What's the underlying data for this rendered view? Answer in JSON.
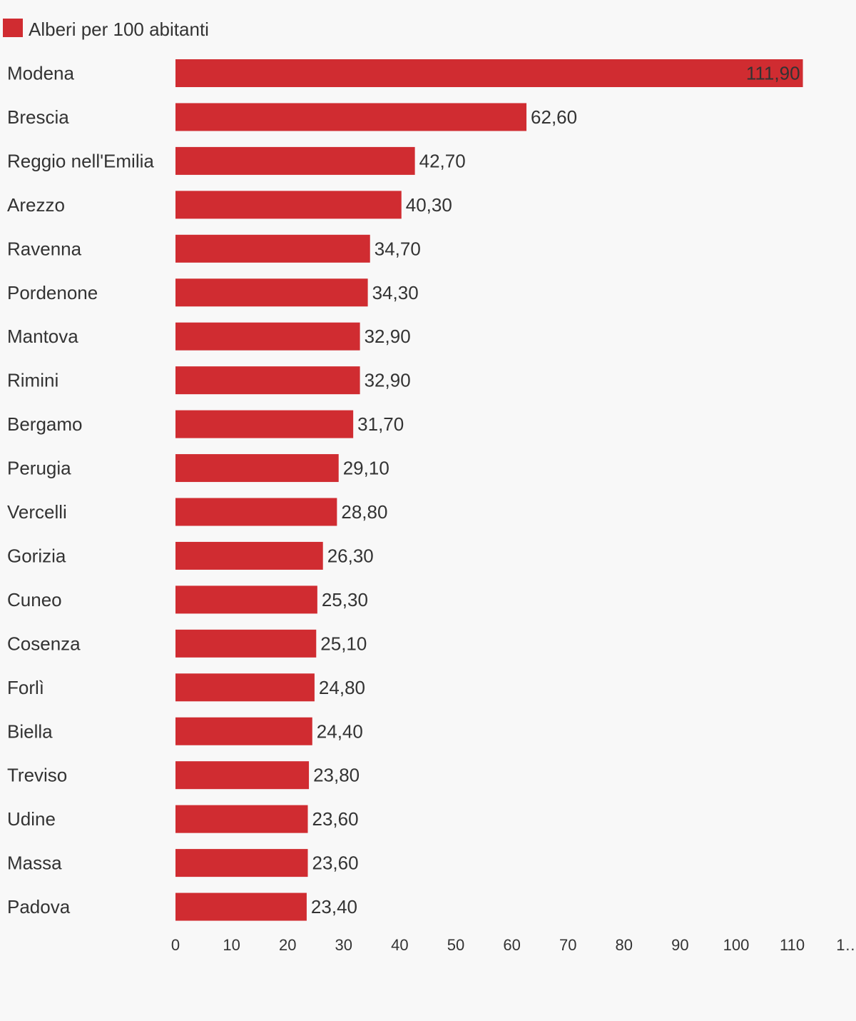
{
  "colors": {
    "bar": "#d02c31",
    "background": "#f8f8f8",
    "text": "#333333"
  },
  "chart_data": {
    "type": "bar",
    "orientation": "horizontal",
    "legend": {
      "position": "top-left",
      "entries": [
        "Alberi per 100 abitanti"
      ]
    },
    "series": [
      {
        "name": "Alberi per 100 abitanti",
        "values": [
          111.9,
          62.6,
          42.7,
          40.3,
          34.7,
          34.3,
          32.9,
          32.9,
          31.7,
          29.1,
          28.8,
          26.3,
          25.3,
          25.1,
          24.8,
          24.4,
          23.8,
          23.6,
          23.6,
          23.4
        ],
        "labels": [
          "111,90",
          "62,60",
          "42,70",
          "40,30",
          "34,70",
          "34,30",
          "32,90",
          "32,90",
          "31,70",
          "29,10",
          "28,80",
          "26,30",
          "25,30",
          "25,10",
          "24,80",
          "24,40",
          "23,80",
          "23,60",
          "23,60",
          "23,40"
        ]
      }
    ],
    "categories": [
      "Modena",
      "Brescia",
      "Reggio nell'Emilia",
      "Arezzo",
      "Ravenna",
      "Pordenone",
      "Mantova",
      "Rimini",
      "Bergamo",
      "Perugia",
      "Vercelli",
      "Gorizia",
      "Cuneo",
      "Cosenza",
      "Forlì",
      "Biella",
      "Treviso",
      "Udine",
      "Massa",
      "Padova"
    ],
    "xlim": [
      0,
      120
    ],
    "x_ticks": [
      "0",
      "10",
      "20",
      "30",
      "40",
      "50",
      "60",
      "70",
      "80",
      "90",
      "100",
      "110",
      "1…"
    ],
    "grid": false
  }
}
